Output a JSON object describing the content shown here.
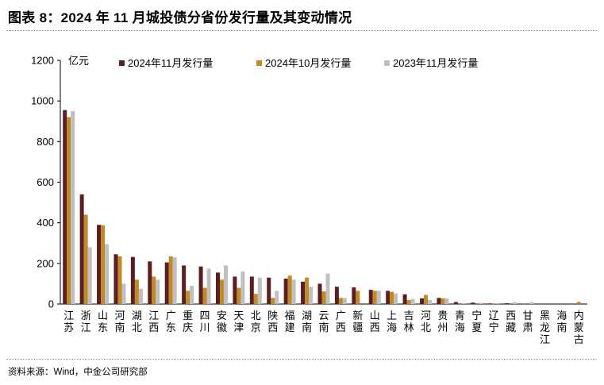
{
  "title": "图表 8：2024 年 11 月城投债分省份发行量及其变动情况",
  "source": "资料来源：Wind，中金公司研究部",
  "chart_data": {
    "type": "bar",
    "ylabel": "亿元",
    "ylim": [
      0,
      1200
    ],
    "yticks": [
      "0",
      "200",
      "400",
      "600",
      "800",
      "1000",
      "1200"
    ],
    "legend_position": "top",
    "categories": [
      "江苏",
      "浙江",
      "山东",
      "河南",
      "湖北",
      "江西",
      "广东",
      "重庆",
      "四川",
      "安徽",
      "天津",
      "北京",
      "陕西",
      "福建",
      "湖南",
      "云南",
      "广西",
      "新疆",
      "山西",
      "上海",
      "吉林",
      "河北",
      "贵州",
      "青海",
      "宁夏",
      "辽宁",
      "西藏",
      "甘肃",
      "黑龙江",
      "海南",
      "内蒙古"
    ],
    "series": [
      {
        "name": "2024年11月发行量",
        "color": "#5c1f21",
        "values": [
          955,
          540,
          390,
          245,
          232,
          210,
          205,
          190,
          185,
          155,
          135,
          135,
          130,
          125,
          110,
          100,
          85,
          82,
          70,
          65,
          48,
          28,
          30,
          10,
          7,
          3,
          4,
          2,
          1,
          1,
          0
        ]
      },
      {
        "name": "2024年10月发行量",
        "color": "#c08a26",
        "values": [
          920,
          440,
          388,
          235,
          120,
          135,
          235,
          65,
          80,
          120,
          80,
          50,
          30,
          140,
          130,
          62,
          30,
          65,
          65,
          60,
          20,
          45,
          28,
          0,
          0,
          3,
          0,
          0,
          0,
          0,
          10
        ]
      },
      {
        "name": "2023年11月发行量",
        "color": "#c0c0c0",
        "values": [
          950,
          280,
          295,
          100,
          75,
          120,
          230,
          90,
          175,
          190,
          160,
          130,
          65,
          120,
          85,
          150,
          30,
          0,
          65,
          52,
          25,
          20,
          28,
          5,
          6,
          5,
          10,
          10,
          0,
          0,
          0
        ]
      }
    ]
  }
}
